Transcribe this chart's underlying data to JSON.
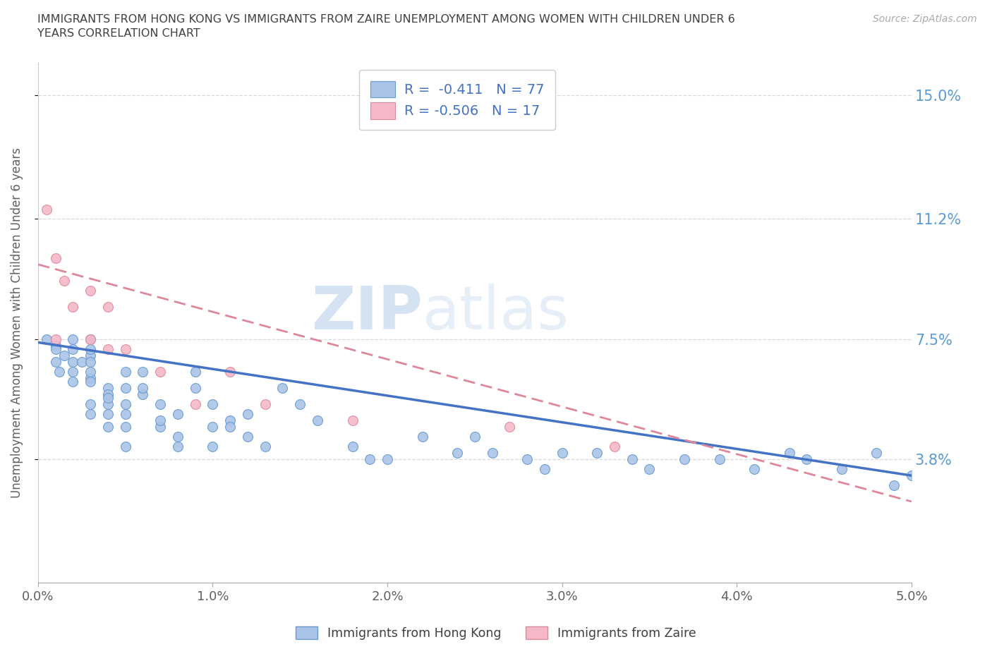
{
  "title_line1": "IMMIGRANTS FROM HONG KONG VS IMMIGRANTS FROM ZAIRE UNEMPLOYMENT AMONG WOMEN WITH CHILDREN UNDER 6",
  "title_line2": "YEARS CORRELATION CHART",
  "source": "Source: ZipAtlas.com",
  "ylabel": "Unemployment Among Women with Children Under 6 years",
  "xlim": [
    0.0,
    0.05
  ],
  "ylim": [
    0.0,
    0.16
  ],
  "yticks": [
    0.038,
    0.075,
    0.112,
    0.15
  ],
  "ytick_labels": [
    "3.8%",
    "7.5%",
    "11.2%",
    "15.0%"
  ],
  "xticks": [
    0.0,
    0.01,
    0.02,
    0.03,
    0.04,
    0.05
  ],
  "xtick_labels": [
    "0.0%",
    "1.0%",
    "2.0%",
    "3.0%",
    "4.0%",
    "5.0%"
  ],
  "hk_face_color": "#aac4e8",
  "hk_edge_color": "#6699cc",
  "zaire_face_color": "#f5b8c8",
  "zaire_edge_color": "#dd8899",
  "hk_line_color": "#4472c4",
  "zaire_line_color": "#dd8899",
  "hk_R": -0.411,
  "hk_N": 77,
  "zaire_R": -0.506,
  "zaire_N": 17,
  "watermark_part1": "ZIP",
  "watermark_part2": "atlas",
  "hk_scatter_x": [
    0.0005,
    0.001,
    0.001,
    0.001,
    0.0012,
    0.0015,
    0.002,
    0.002,
    0.002,
    0.002,
    0.002,
    0.0025,
    0.003,
    0.003,
    0.003,
    0.003,
    0.003,
    0.003,
    0.003,
    0.003,
    0.003,
    0.004,
    0.004,
    0.004,
    0.004,
    0.004,
    0.004,
    0.005,
    0.005,
    0.005,
    0.005,
    0.005,
    0.005,
    0.006,
    0.006,
    0.006,
    0.007,
    0.007,
    0.007,
    0.008,
    0.008,
    0.008,
    0.009,
    0.009,
    0.01,
    0.01,
    0.01,
    0.011,
    0.011,
    0.012,
    0.012,
    0.013,
    0.014,
    0.015,
    0.016,
    0.018,
    0.019,
    0.02,
    0.022,
    0.024,
    0.025,
    0.026,
    0.028,
    0.029,
    0.03,
    0.032,
    0.034,
    0.035,
    0.037,
    0.039,
    0.041,
    0.043,
    0.044,
    0.046,
    0.048,
    0.049,
    0.05
  ],
  "hk_scatter_y": [
    0.075,
    0.073,
    0.068,
    0.072,
    0.065,
    0.07,
    0.068,
    0.072,
    0.065,
    0.062,
    0.075,
    0.068,
    0.063,
    0.07,
    0.072,
    0.068,
    0.065,
    0.055,
    0.052,
    0.075,
    0.062,
    0.06,
    0.055,
    0.058,
    0.052,
    0.048,
    0.057,
    0.065,
    0.06,
    0.055,
    0.048,
    0.052,
    0.042,
    0.058,
    0.06,
    0.065,
    0.055,
    0.048,
    0.05,
    0.052,
    0.045,
    0.042,
    0.065,
    0.06,
    0.048,
    0.042,
    0.055,
    0.05,
    0.048,
    0.052,
    0.045,
    0.042,
    0.06,
    0.055,
    0.05,
    0.042,
    0.038,
    0.038,
    0.045,
    0.04,
    0.045,
    0.04,
    0.038,
    0.035,
    0.04,
    0.04,
    0.038,
    0.035,
    0.038,
    0.038,
    0.035,
    0.04,
    0.038,
    0.035,
    0.04,
    0.03,
    0.033
  ],
  "zaire_scatter_x": [
    0.0005,
    0.001,
    0.001,
    0.0015,
    0.002,
    0.003,
    0.003,
    0.004,
    0.004,
    0.005,
    0.007,
    0.009,
    0.011,
    0.013,
    0.018,
    0.027,
    0.033
  ],
  "zaire_scatter_y": [
    0.115,
    0.1,
    0.075,
    0.093,
    0.085,
    0.09,
    0.075,
    0.085,
    0.072,
    0.072,
    0.065,
    0.055,
    0.065,
    0.055,
    0.05,
    0.048,
    0.042
  ],
  "hk_trend_x0": 0.0,
  "hk_trend_y0": 0.074,
  "hk_trend_x1": 0.05,
  "hk_trend_y1": 0.033,
  "z_trend_x0": 0.0,
  "z_trend_y0": 0.098,
  "z_trend_x1": 0.05,
  "z_trend_y1": 0.025,
  "background_color": "#ffffff",
  "grid_color": "#d8d8d8",
  "title_color": "#404040",
  "axis_label_color": "#5b9bd5",
  "tick_color": "#606060",
  "legend_text_color": "#4472c4"
}
